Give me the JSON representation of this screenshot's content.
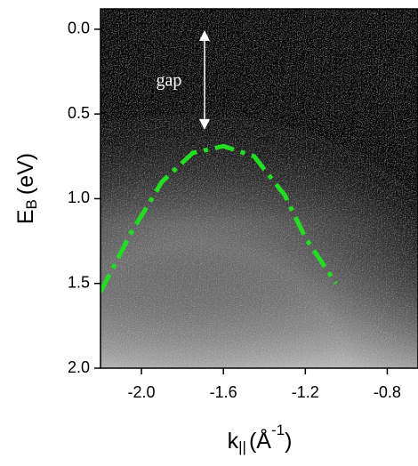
{
  "chart_data": {
    "type": "image",
    "x_label": {
      "main": "k",
      "sub": "||",
      "open": "(Å",
      "sup": "-1",
      "close": ")"
    },
    "y_label": {
      "main": "E",
      "sub": "B",
      "unit": "(eV)"
    },
    "xlim": [
      -2.2,
      -0.65
    ],
    "ylim": [
      -0.12,
      2.0
    ],
    "y_inverted": true,
    "xticks": [
      {
        "value": -2.0,
        "label": "-2.0"
      },
      -1.6,
      -1.2,
      {
        "value": -0.8,
        "label": "-0.8"
      }
    ],
    "yticks": [
      {
        "value": 0,
        "label": "0.0"
      },
      0.5,
      {
        "value": 1,
        "label": "1.0"
      },
      1.5,
      {
        "value": 2,
        "label": "2.0"
      }
    ],
    "series": [
      {
        "color": "#22dd22",
        "x": [
          -2.2,
          -2.05,
          -1.9,
          -1.75,
          -1.6,
          -1.45,
          -1.3,
          -1.2,
          -1.05
        ],
        "values": [
          1.55,
          1.2,
          0.9,
          0.73,
          0.69,
          0.75,
          0.98,
          1.23,
          1.5
        ]
      }
    ],
    "annotation": "gap"
  }
}
